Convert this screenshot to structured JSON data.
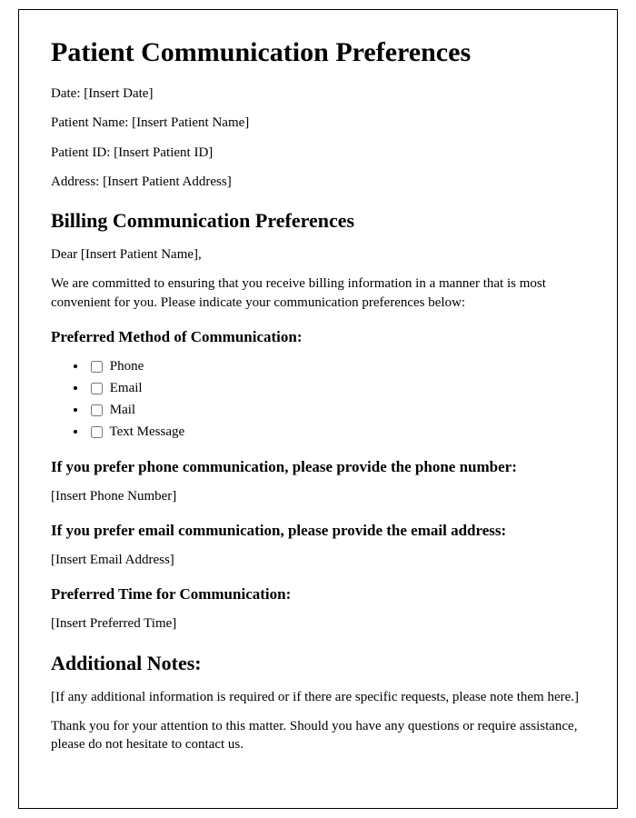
{
  "title": "Patient Communication Preferences",
  "fields": {
    "date_label": "Date: ",
    "date_value": "[Insert Date]",
    "name_label": "Patient Name: ",
    "name_value": "[Insert Patient Name]",
    "id_label": "Patient ID: ",
    "id_value": "[Insert Patient ID]",
    "address_label": "Address: ",
    "address_value": "[Insert Patient Address]"
  },
  "section_billing": "Billing Communication Preferences",
  "salutation": "Dear [Insert Patient Name],",
  "intro": "We are committed to ensuring that you receive billing information in a manner that is most convenient for you. Please indicate your communication preferences below:",
  "method_heading": "Preferred Method of Communication:",
  "methods": {
    "phone": "Phone",
    "email": "Email",
    "mail": "Mail",
    "text": "Text Message"
  },
  "phone_heading": "If you prefer phone communication, please provide the phone number:",
  "phone_value": "[Insert Phone Number]",
  "email_heading": "If you prefer email communication, please provide the email address:",
  "email_value": "[Insert Email Address]",
  "time_heading": "Preferred Time for Communication:",
  "time_value": "[Insert Preferred Time]",
  "notes_heading": "Additional Notes:",
  "notes_value": "[If any additional information is required or if there are specific requests, please note them here.]",
  "closing": "Thank you for your attention to this matter. Should you have any questions or require assistance, please do not hesitate to contact us."
}
